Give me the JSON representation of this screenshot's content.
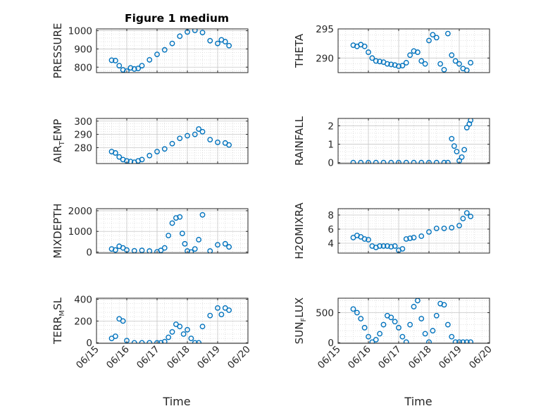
{
  "chart_data": [
    {
      "type": "scatter",
      "title": "Figure 1 medium",
      "ylabel": {
        "parts": [
          {
            "text": "PRESSURE"
          }
        ]
      },
      "xlabel": "",
      "xlim": [
        "06/15",
        "06/20"
      ],
      "ylim": [
        770,
        1010
      ],
      "yticks": [
        800,
        900,
        1000
      ],
      "xticks": [],
      "grid": true,
      "series": [
        {
          "x": [
            "06/15 12:00",
            "06/15 15:00",
            "06/15 18:00",
            "06/15 21:00",
            "06/16 00:00",
            "06/16 03:00",
            "06/16 06:00",
            "06/16 09:00",
            "06/16 12:00",
            "06/16 18:00",
            "06/17 00:00",
            "06/17 06:00",
            "06/17 12:00",
            "06/17 18:00",
            "06/18 00:00",
            "06/18 06:00",
            "06/18 12:00",
            "06/18 18:00",
            "06/19 00:00",
            "06/19 03:00",
            "06/19 06:00",
            "06/19 09:00"
          ],
          "y": [
            838,
            836,
            808,
            785,
            778,
            796,
            790,
            793,
            808,
            840,
            870,
            895,
            930,
            970,
            993,
            1002,
            990,
            945,
            930,
            950,
            940,
            918
          ]
        }
      ]
    },
    {
      "type": "scatter",
      "title": "",
      "ylabel": {
        "parts": [
          {
            "text": "THETA"
          }
        ]
      },
      "xlabel": "",
      "xlim": [
        "06/15",
        "06/20"
      ],
      "ylim": [
        287.5,
        295
      ],
      "yticks": [
        290,
        295
      ],
      "xticks": [],
      "grid": true,
      "series": [
        {
          "x": [
            "06/15 12:00",
            "06/15 15:00",
            "06/15 18:00",
            "06/15 21:00",
            "06/16 00:00",
            "06/16 03:00",
            "06/16 06:00",
            "06/16 09:00",
            "06/16 12:00",
            "06/16 15:00",
            "06/16 18:00",
            "06/16 21:00",
            "06/17 00:00",
            "06/17 03:00",
            "06/17 06:00",
            "06/17 09:00",
            "06/17 12:00",
            "06/17 15:00",
            "06/17 18:00",
            "06/17 21:00",
            "06/18 00:00",
            "06/18 03:00",
            "06/18 06:00",
            "06/18 09:00",
            "06/18 12:00",
            "06/18 15:00",
            "06/18 18:00",
            "06/18 21:00",
            "06/19 00:00",
            "06/19 03:00",
            "06/19 06:00",
            "06/19 09:00"
          ],
          "y": [
            292.2,
            292.0,
            292.3,
            292.0,
            291.0,
            290.0,
            289.5,
            289.4,
            289.3,
            289.0,
            288.9,
            288.8,
            288.6,
            288.7,
            289.2,
            290.5,
            291.2,
            291.0,
            289.5,
            289.0,
            293.0,
            294.0,
            293.5,
            289.0,
            288.0,
            294.2,
            290.5,
            289.5,
            289.0,
            288.2,
            287.9,
            289.2
          ]
        }
      ]
    },
    {
      "type": "scatter",
      "title": "",
      "ylabel": {
        "parts": [
          {
            "text": "AIR"
          },
          {
            "text": "T",
            "sub": true
          },
          {
            "text": "EMP"
          }
        ]
      },
      "xlabel": "",
      "xlim": [
        "06/15",
        "06/20"
      ],
      "ylim": [
        268,
        302
      ],
      "yticks": [
        280,
        290,
        300
      ],
      "xticks": [],
      "grid": true,
      "series": [
        {
          "x": [
            "06/15 12:00",
            "06/15 15:00",
            "06/15 18:00",
            "06/15 21:00",
            "06/16 00:00",
            "06/16 03:00",
            "06/16 06:00",
            "06/16 09:00",
            "06/16 12:00",
            "06/16 18:00",
            "06/17 00:00",
            "06/17 06:00",
            "06/17 12:00",
            "06/17 18:00",
            "06/18 00:00",
            "06/18 06:00",
            "06/18 09:00",
            "06/18 12:00",
            "06/18 18:00",
            "06/19 00:00",
            "06/19 06:00",
            "06/19 09:00"
          ],
          "y": [
            277,
            276,
            273,
            271,
            270,
            269.5,
            269,
            270,
            271,
            274,
            277,
            279,
            283,
            287,
            289,
            290,
            294,
            292,
            286,
            284,
            283.5,
            282
          ]
        }
      ]
    },
    {
      "type": "scatter",
      "title": "",
      "ylabel": {
        "parts": [
          {
            "text": "RAINFALL"
          }
        ]
      },
      "xlabel": "",
      "xlim": [
        "06/15",
        "06/20"
      ],
      "ylim": [
        -0.05,
        2.4
      ],
      "yticks": [
        0,
        1,
        2
      ],
      "xticks": [],
      "grid": true,
      "series": [
        {
          "x": [
            "06/15 12:00",
            "06/15 18:00",
            "06/16 00:00",
            "06/16 06:00",
            "06/16 12:00",
            "06/16 18:00",
            "06/17 00:00",
            "06/17 06:00",
            "06/17 12:00",
            "06/17 18:00",
            "06/18 00:00",
            "06/18 06:00",
            "06/18 12:00",
            "06/18 15:00",
            "06/18 18:00",
            "06/18 20:00",
            "06/18 22:00",
            "06/19 00:00",
            "06/19 02:00",
            "06/19 04:00",
            "06/19 06:00",
            "06/19 08:00",
            "06/19 09:00"
          ],
          "y": [
            0,
            0,
            0,
            0,
            0,
            0,
            0,
            0,
            0,
            0,
            0,
            0,
            0,
            0,
            1.3,
            0.9,
            0.6,
            0.1,
            0.3,
            0.7,
            1.9,
            2.1,
            2.3
          ]
        }
      ]
    },
    {
      "type": "scatter",
      "title": "",
      "ylabel": {
        "parts": [
          {
            "text": "MIXDEPTH"
          }
        ]
      },
      "xlabel": "",
      "xlim": [
        "06/15",
        "06/20"
      ],
      "ylim": [
        -50,
        2100
      ],
      "yticks": [
        0,
        1000,
        2000
      ],
      "xticks": [],
      "grid": true,
      "series": [
        {
          "x": [
            "06/15 12:00",
            "06/15 15:00",
            "06/15 18:00",
            "06/15 21:00",
            "06/16 00:00",
            "06/16 06:00",
            "06/16 12:00",
            "06/16 18:00",
            "06/17 00:00",
            "06/17 03:00",
            "06/17 06:00",
            "06/17 09:00",
            "06/17 12:00",
            "06/17 15:00",
            "06/17 18:00",
            "06/17 20:00",
            "06/17 22:00",
            "06/18 00:00",
            "06/18 03:00",
            "06/18 06:00",
            "06/18 09:00",
            "06/18 12:00",
            "06/18 18:00",
            "06/19 00:00",
            "06/19 06:00",
            "06/19 09:00"
          ],
          "y": [
            150,
            100,
            280,
            200,
            100,
            60,
            80,
            50,
            10,
            80,
            200,
            800,
            1400,
            1650,
            1700,
            900,
            400,
            50,
            0,
            150,
            600,
            1800,
            50,
            350,
            400,
            250
          ]
        }
      ]
    },
    {
      "type": "scatter",
      "title": "",
      "ylabel": {
        "parts": [
          {
            "text": "H2OMIXRA"
          }
        ]
      },
      "xlabel": "",
      "xlim": [
        "06/15",
        "06/20"
      ],
      "ylim": [
        2.6,
        8.9
      ],
      "yticks": [
        4,
        6,
        8
      ],
      "xticks": [],
      "grid": true,
      "series": [
        {
          "x": [
            "06/15 12:00",
            "06/15 15:00",
            "06/15 18:00",
            "06/15 21:00",
            "06/16 00:00",
            "06/16 03:00",
            "06/16 06:00",
            "06/16 09:00",
            "06/16 12:00",
            "06/16 15:00",
            "06/16 18:00",
            "06/16 21:00",
            "06/17 00:00",
            "06/17 03:00",
            "06/17 06:00",
            "06/17 09:00",
            "06/17 12:00",
            "06/17 18:00",
            "06/18 00:00",
            "06/18 06:00",
            "06/18 12:00",
            "06/18 18:00",
            "06/19 00:00",
            "06/19 03:00",
            "06/19 06:00",
            "06/19 09:00"
          ],
          "y": [
            4.8,
            5.1,
            4.9,
            4.6,
            4.5,
            3.6,
            3.4,
            3.6,
            3.6,
            3.6,
            3.5,
            3.6,
            3.0,
            3.2,
            4.6,
            4.7,
            4.8,
            5.0,
            5.6,
            6.1,
            6.1,
            6.2,
            6.5,
            7.5,
            8.3,
            7.8
          ]
        }
      ]
    },
    {
      "type": "scatter",
      "title": "",
      "ylabel": {
        "parts": [
          {
            "text": "TERR"
          },
          {
            "text": "M",
            "sub": true
          },
          {
            "text": "SL"
          }
        ]
      },
      "xlabel": "Time",
      "xlim": [
        "06/15",
        "06/20"
      ],
      "ylim": [
        -5,
        410
      ],
      "yticks": [
        0,
        200,
        400
      ],
      "xticks": [
        "06/15",
        "06/16",
        "06/17",
        "06/18",
        "06/19",
        "06/20"
      ],
      "grid": true,
      "series": [
        {
          "x": [
            "06/15 12:00",
            "06/15 15:00",
            "06/15 18:00",
            "06/15 21:00",
            "06/16 00:00",
            "06/16 06:00",
            "06/16 12:00",
            "06/16 18:00",
            "06/17 00:00",
            "06/17 03:00",
            "06/17 06:00",
            "06/17 09:00",
            "06/17 12:00",
            "06/17 15:00",
            "06/17 18:00",
            "06/17 21:00",
            "06/18 00:00",
            "06/18 03:00",
            "06/18 06:00",
            "06/18 09:00",
            "06/18 12:00",
            "06/18 18:00",
            "06/19 00:00",
            "06/19 03:00",
            "06/19 06:00",
            "06/19 09:00"
          ],
          "y": [
            40,
            60,
            220,
            200,
            20,
            0,
            0,
            0,
            0,
            0,
            10,
            50,
            100,
            170,
            150,
            80,
            120,
            40,
            0,
            0,
            150,
            250,
            320,
            260,
            320,
            300
          ]
        }
      ]
    },
    {
      "type": "scatter",
      "title": "",
      "ylabel": {
        "parts": [
          {
            "text": "SUN"
          },
          {
            "text": "F",
            "sub": true
          },
          {
            "text": "LUX"
          }
        ]
      },
      "xlabel": "Time",
      "xlim": [
        "06/15",
        "06/20"
      ],
      "ylim": [
        -10,
        740
      ],
      "yticks": [
        0,
        500
      ],
      "xticks": [
        "06/15",
        "06/16",
        "06/17",
        "06/18",
        "06/19",
        "06/20"
      ],
      "grid": true,
      "series": [
        {
          "x": [
            "06/15 12:00",
            "06/15 15:00",
            "06/15 18:00",
            "06/15 21:00",
            "06/16 00:00",
            "06/16 03:00",
            "06/16 06:00",
            "06/16 09:00",
            "06/16 12:00",
            "06/16 15:00",
            "06/16 18:00",
            "06/16 21:00",
            "06/17 00:00",
            "06/17 03:00",
            "06/17 06:00",
            "06/17 09:00",
            "06/17 12:00",
            "06/17 15:00",
            "06/17 18:00",
            "06/17 21:00",
            "06/18 00:00",
            "06/18 03:00",
            "06/18 06:00",
            "06/18 09:00",
            "06/18 12:00",
            "06/18 15:00",
            "06/18 18:00",
            "06/18 21:00",
            "06/19 00:00",
            "06/19 03:00",
            "06/19 06:00",
            "06/19 09:00"
          ],
          "y": [
            560,
            500,
            400,
            250,
            100,
            10,
            50,
            150,
            300,
            450,
            420,
            350,
            250,
            100,
            10,
            300,
            600,
            700,
            400,
            150,
            10,
            200,
            450,
            650,
            630,
            300,
            100,
            10,
            10,
            10,
            10,
            10
          ]
        }
      ]
    }
  ]
}
